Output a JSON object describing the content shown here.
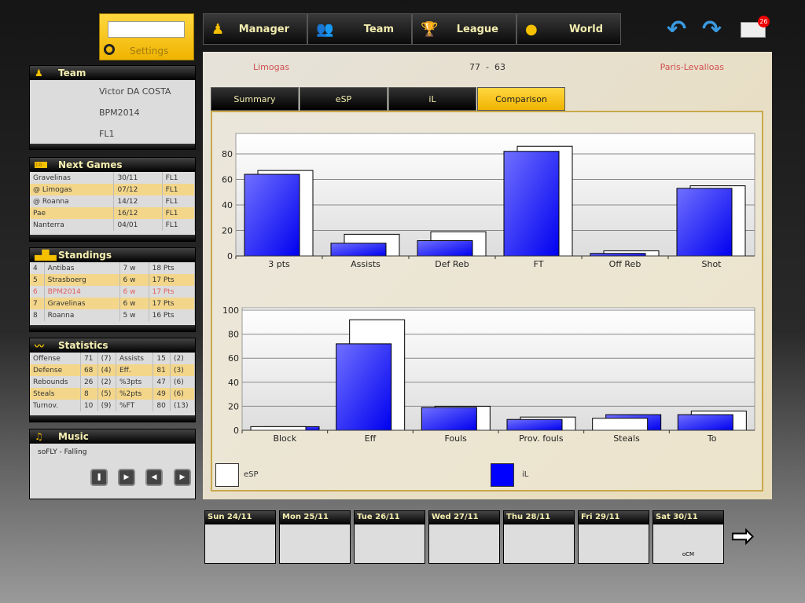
{
  "settings": {
    "label": "Settings",
    "input_value": ""
  },
  "nav": [
    {
      "label": "Manager",
      "icon": "person-icon"
    },
    {
      "label": "Team",
      "icon": "group-icon"
    },
    {
      "label": "League",
      "icon": "trophy-icon"
    },
    {
      "label": "World",
      "icon": "globe-icon"
    }
  ],
  "mail": {
    "badge": "26"
  },
  "team": {
    "title": "Team",
    "manager": "Victor DA COSTA",
    "club": "BPM2014",
    "league": "FL1"
  },
  "next_games": {
    "title": "Next Games",
    "icon_text": "16",
    "rows": [
      [
        "Gravelinas",
        "30/11",
        "FL1"
      ],
      [
        "@ Limogas",
        "07/12",
        "FL1"
      ],
      [
        "@ Roanna",
        "14/12",
        "FL1"
      ],
      [
        "Pae",
        "16/12",
        "FL1"
      ],
      [
        "Nanterra",
        "04/01",
        "FL1"
      ]
    ]
  },
  "standings": {
    "title": "Standings",
    "rows": [
      [
        "4",
        "Antibas",
        "7 w",
        "18 Pts"
      ],
      [
        "5",
        "Strasboerg",
        "6 w",
        "17 Pts"
      ],
      [
        "6",
        "BPM2014",
        "6 w",
        "17 Pts"
      ],
      [
        "7",
        "Gravelinas",
        "6 w",
        "17 Pts"
      ],
      [
        "8",
        "Roanna",
        "5 w",
        "16 Pts"
      ]
    ]
  },
  "statistics": {
    "title": "Statistics",
    "rows": [
      [
        "Offense",
        "71",
        "(7)",
        "Assists",
        "15",
        "(2)"
      ],
      [
        "Defense",
        "68",
        "(4)",
        "Eff.",
        "81",
        "(3)"
      ],
      [
        "Rebounds",
        "26",
        "(2)",
        "%3pts",
        "47",
        "(6)"
      ],
      [
        "Steals",
        "8",
        "(5)",
        "%2pts",
        "49",
        "(6)"
      ],
      [
        "Turnov.",
        "10",
        "(9)",
        "%FT",
        "80",
        "(13)"
      ]
    ]
  },
  "music": {
    "title": "Music",
    "track": "soFLY - Falling"
  },
  "match": {
    "home": "Limogas",
    "score": "77  -  63",
    "away": "Paris-Levalloas"
  },
  "tabs": [
    "Summary",
    "eSP",
    "iL",
    "Comparison"
  ],
  "active_tab": "Comparison",
  "colors": {
    "esp": "#ffffff",
    "il": "#0000ff",
    "accent": "#f5c000"
  },
  "chart_data": [
    {
      "type": "bar",
      "categories": [
        "3 pts",
        "Assists",
        "Def Reb",
        "FT",
        "Off Reb",
        "Shot"
      ],
      "ylim": [
        0,
        96
      ],
      "yticks": [
        0,
        20,
        40,
        60,
        80
      ],
      "grid": true,
      "series": [
        {
          "name": "eSP",
          "values": [
            67,
            17,
            19,
            86,
            4,
            55
          ]
        },
        {
          "name": "iL",
          "values": [
            64,
            10,
            12,
            82,
            2,
            53
          ]
        }
      ]
    },
    {
      "type": "bar",
      "categories": [
        "Block",
        "Eff",
        "Fouls",
        "Prov. fouls",
        "Steals",
        "To"
      ],
      "ylim": [
        0,
        102
      ],
      "yticks": [
        0,
        20,
        40,
        60,
        80,
        100
      ],
      "grid": true,
      "series": [
        {
          "name": "eSP",
          "values": [
            3,
            92,
            20,
            11,
            10,
            16
          ]
        },
        {
          "name": "iL",
          "values": [
            3,
            72,
            19,
            9,
            13,
            13
          ]
        }
      ]
    }
  ],
  "legend": [
    {
      "label": "eSP"
    },
    {
      "label": "iL"
    }
  ],
  "calendar": [
    {
      "label": "Sun 24/11",
      "note": ""
    },
    {
      "label": "Mon 25/11",
      "note": ""
    },
    {
      "label": "Tue 26/11",
      "note": ""
    },
    {
      "label": "Wed 27/11",
      "note": ""
    },
    {
      "label": "Thu 28/11",
      "note": ""
    },
    {
      "label": "Fri 29/11",
      "note": ""
    },
    {
      "label": "Sat 30/11",
      "note": "oCM"
    }
  ]
}
